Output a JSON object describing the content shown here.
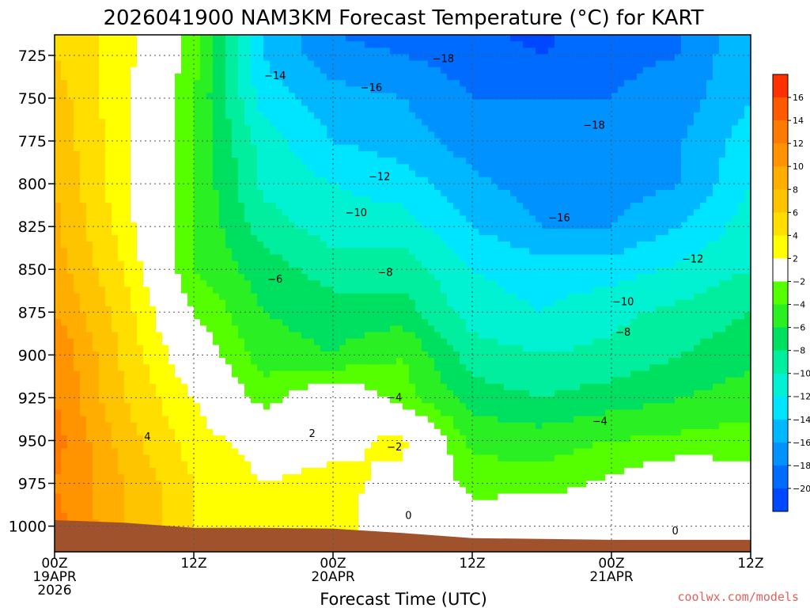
{
  "chart_data": {
    "type": "heatmap",
    "title": "2026041900 NAM3KM Forecast Temperature (°C) for KART",
    "xlabel": "Forecast Time (UTC)",
    "ylabel": "",
    "y_axis_unit": "hPa",
    "y_reversed": true,
    "ylim": [
      1015,
      713
    ],
    "xlim_hours": [
      0,
      60
    ],
    "x_ticks": [
      {
        "hour": 0,
        "lines": [
          "00Z",
          "19APR",
          "2026"
        ]
      },
      {
        "hour": 12,
        "lines": [
          "12Z"
        ]
      },
      {
        "hour": 24,
        "lines": [
          "00Z",
          "20APR"
        ]
      },
      {
        "hour": 36,
        "lines": [
          "12Z"
        ]
      },
      {
        "hour": 48,
        "lines": [
          "00Z",
          "21APR"
        ]
      },
      {
        "hour": 60,
        "lines": [
          "12Z"
        ]
      }
    ],
    "y_ticks": [
      725,
      750,
      775,
      800,
      825,
      850,
      875,
      900,
      925,
      950,
      975,
      1000
    ],
    "grid": true,
    "colorbar": {
      "levels": [
        16,
        14,
        12,
        10,
        8,
        6,
        4,
        2,
        -2,
        -4,
        -6,
        -8,
        -10,
        -12,
        -14,
        -16,
        -18,
        -20
      ],
      "colors": [
        "#ff3000",
        "#ff5a00",
        "#ff7a00",
        "#ff9400",
        "#ffae00",
        "#ffc400",
        "#ffde00",
        "#ffff00",
        "#ffffff",
        "#55ff00",
        "#2aef22",
        "#00e060",
        "#00ee9e",
        "#00f2d2",
        "#00e5ff",
        "#00b8ff",
        "#0092ff",
        "#006cff",
        "#0048ff"
      ]
    },
    "grid_x_hours": [
      0,
      6,
      12,
      18,
      24,
      30,
      36,
      42,
      48,
      54,
      60
    ],
    "grid_p": [
      713,
      725,
      750,
      775,
      800,
      825,
      850,
      875,
      900,
      925,
      950,
      975,
      1000,
      1015
    ],
    "temperature_grid": [
      [
        6.0,
        3.0,
        -3.0,
        -14.0,
        -18.0,
        -18.5,
        -19.5,
        -20.5,
        -18.5,
        -18.0,
        -14.0
      ],
      [
        6.0,
        3.0,
        -3.0,
        -14.0,
        -17.5,
        -18.0,
        -19.0,
        -20.0,
        -18.5,
        -18.0,
        -14.0
      ],
      [
        7.0,
        2.5,
        -4.0,
        -13.0,
        -15.0,
        -16.0,
        -18.0,
        -18.0,
        -18.0,
        -17.0,
        -14.0
      ],
      [
        7.5,
        2.5,
        -4.0,
        -11.0,
        -14.0,
        -15.0,
        -17.0,
        -17.5,
        -17.5,
        -16.0,
        -13.0
      ],
      [
        8.0,
        2.5,
        -4.0,
        -10.5,
        -12.0,
        -13.0,
        -15.5,
        -17.0,
        -17.0,
        -16.0,
        -12.0
      ],
      [
        8.5,
        3.0,
        -4.0,
        -9.0,
        -11.0,
        -11.0,
        -14.0,
        -16.0,
        -16.0,
        -14.0,
        -11.0
      ],
      [
        9.0,
        4.0,
        -4.0,
        -7.0,
        -9.0,
        -9.0,
        -12.0,
        -13.0,
        -13.0,
        -11.5,
        -10.0
      ],
      [
        10.0,
        5.0,
        -2.0,
        -6.0,
        -7.0,
        -7.0,
        -11.0,
        -12.0,
        -10.5,
        -9.5,
        -8.0
      ],
      [
        12.0,
        5.5,
        0.0,
        -5.0,
        -6.0,
        -4.0,
        -9.0,
        -10.0,
        -9.5,
        -8.0,
        -6.5
      ],
      [
        12.0,
        6.0,
        2.0,
        -3.0,
        0.5,
        -3.0,
        -7.0,
        -8.0,
        -7.0,
        -6.0,
        -5.0
      ],
      [
        13.0,
        7.0,
        3.0,
        1.0,
        1.5,
        2.5,
        -4.5,
        -5.0,
        -4.0,
        -3.5,
        -3.0
      ],
      [
        12.0,
        8.0,
        4.0,
        2.0,
        2.5,
        1.5,
        -3.0,
        -3.0,
        -1.5,
        0.5,
        -1.0
      ],
      [
        13.0,
        8.0,
        4.0,
        3.0,
        3.0,
        0.0,
        0.0,
        0.5,
        0.5,
        0.0,
        0.0
      ],
      [
        13.0,
        8.0,
        4.0,
        3.0,
        3.0,
        0.0,
        0.0,
        0.5,
        0.5,
        0.0,
        0.0
      ]
    ],
    "contour_labels": [
      {
        "text": "−18",
        "hour": 33.5,
        "p": 727
      },
      {
        "text": "−16",
        "hour": 27.3,
        "p": 744
      },
      {
        "text": "−14",
        "hour": 19.0,
        "p": 737
      },
      {
        "text": "−18",
        "hour": 46.5,
        "p": 766
      },
      {
        "text": "−12",
        "hour": 28.0,
        "p": 796
      },
      {
        "text": "−16",
        "hour": 43.5,
        "p": 820
      },
      {
        "text": "−10",
        "hour": 26.0,
        "p": 817
      },
      {
        "text": "−12",
        "hour": 55.0,
        "p": 844
      },
      {
        "text": "−6",
        "hour": 19.0,
        "p": 856
      },
      {
        "text": "−8",
        "hour": 28.5,
        "p": 852
      },
      {
        "text": "−10",
        "hour": 49.0,
        "p": 869
      },
      {
        "text": "−8",
        "hour": 49.0,
        "p": 887
      },
      {
        "text": "−4",
        "hour": 29.3,
        "p": 925
      },
      {
        "text": "−4",
        "hour": 47.0,
        "p": 939
      },
      {
        "text": "2",
        "hour": 22.2,
        "p": 946
      },
      {
        "text": "4",
        "hour": 8.0,
        "p": 948
      },
      {
        "text": "−2",
        "hour": 29.3,
        "p": 954
      },
      {
        "text": "0",
        "hour": 30.5,
        "p": 994
      },
      {
        "text": "0",
        "hour": 53.5,
        "p": 1003
      }
    ]
  },
  "credit": "coolwx.com/models"
}
